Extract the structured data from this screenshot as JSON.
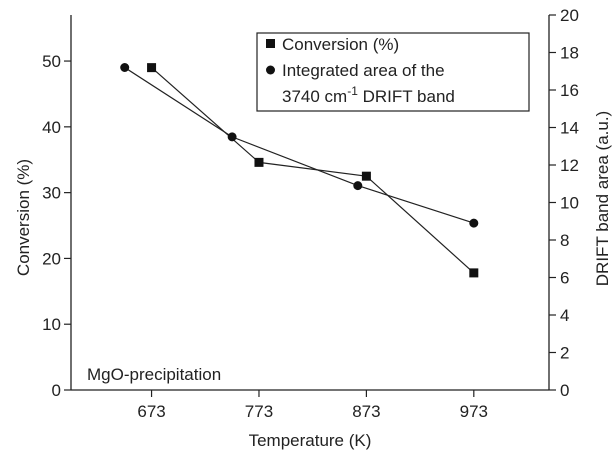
{
  "chart_data": {
    "type": "line",
    "xlabel": "Temperature (K)",
    "ylabel": "Conversion (%)",
    "y2label": "DRIFT band area (a.u.)",
    "xticks": [
      673,
      773,
      873,
      973
    ],
    "yticks": [
      0,
      10,
      20,
      30,
      40,
      50
    ],
    "y2ticks": [
      0,
      2,
      4,
      6,
      8,
      10,
      12,
      14,
      16,
      18,
      20
    ],
    "xlim": [
      598,
      1043
    ],
    "ylim": [
      0,
      57
    ],
    "y2lim": [
      0,
      20
    ],
    "annotation": "MgO-precipitation",
    "legend_position": "top-right",
    "series": [
      {
        "name": "Conversion (%)",
        "marker": "square",
        "axis": "left",
        "x": [
          673,
          773,
          873,
          973
        ],
        "y": [
          49,
          34.6,
          32.5,
          17.8
        ]
      },
      {
        "name_line1": "Integrated area of the",
        "name_line2_prefix": "3740 cm",
        "name_line2_sup": "-1",
        "name_line2_suffix": " DRIFT band",
        "marker": "circle",
        "axis": "right",
        "x": [
          648,
          748,
          865,
          973
        ],
        "y": [
          17.2,
          13.5,
          10.9,
          8.9
        ]
      }
    ]
  }
}
